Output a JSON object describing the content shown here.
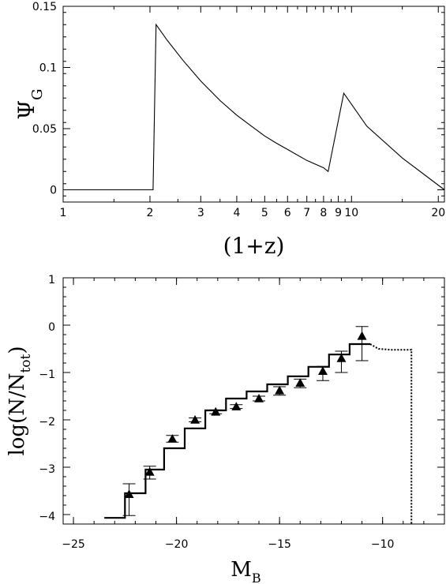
{
  "chart_data": [
    {
      "type": "line",
      "title": "",
      "xlabel": "(1+z)",
      "ylabel_main": "Ψ",
      "ylabel_sub": "G",
      "xscale": "log",
      "xlim": [
        1,
        21
      ],
      "ylim": [
        -0.01,
        0.15
      ],
      "xticks": [
        1,
        2,
        3,
        4,
        5,
        6,
        7,
        8,
        9,
        10,
        20
      ],
      "xtick_labels": [
        "1",
        "2",
        "3",
        "4",
        "5",
        "6",
        "7",
        "8",
        "9",
        "10",
        "20"
      ],
      "yticks": [
        0,
        0.05,
        0.1,
        0.15
      ],
      "ytick_labels": [
        "0",
        "0.05",
        "0.1",
        "0.15"
      ],
      "grid": false,
      "series": [
        {
          "x": [
            1,
            2.05,
            2.1,
            2.3,
            2.6,
            3.0,
            3.5,
            4.0,
            4.5,
            5.0,
            5.5,
            6.0,
            7.0,
            8.0,
            8.3,
            9.4,
            11.3,
            15.0,
            21.0
          ],
          "y": [
            0,
            0,
            0.135,
            0.122,
            0.106,
            0.089,
            0.073,
            0.061,
            0.052,
            0.044,
            0.038,
            0.033,
            0.024,
            0.018,
            0.015,
            0.079,
            0.052,
            0.026,
            0
          ]
        }
      ]
    },
    {
      "type": "line",
      "title": "",
      "xlabel_main": "M",
      "xlabel_sub": "B",
      "ylabel_main": "log(N/N",
      "ylabel_sub": "tot",
      "ylabel_end": ")",
      "xlim": [
        -25.5,
        -7
      ],
      "ylim": [
        -4.2,
        1
      ],
      "xticks": [
        -25,
        -20,
        -15,
        -10
      ],
      "xtick_labels": [
        "−25",
        "−20",
        "−15",
        "−10"
      ],
      "yticks": [
        1,
        0,
        -1,
        -2,
        -3,
        -4
      ],
      "ytick_labels": [
        "1",
        "0",
        "−1",
        "−2",
        "−3",
        "−4"
      ],
      "grid": false,
      "model_step": {
        "edges": [
          -23.5,
          -22.5,
          -21.5,
          -20.6,
          -19.6,
          -18.6,
          -17.6,
          -16.6,
          -15.6,
          -14.6,
          -13.6,
          -12.6,
          -11.6,
          -10.6
        ],
        "values": [
          -4.07,
          -3.55,
          -3.05,
          -2.6,
          -2.18,
          -1.8,
          -1.55,
          -1.4,
          -1.25,
          -1.08,
          -0.88,
          -0.62,
          -0.4
        ]
      },
      "model_dotted": {
        "x": [
          -10.6,
          -10.2,
          -9.6,
          -8.6,
          -8.6
        ],
        "y": [
          -0.4,
          -0.5,
          -0.52,
          -0.52,
          -4.2
        ]
      },
      "observed": {
        "x": [
          -22.3,
          -21.3,
          -20.2,
          -19.1,
          -18.1,
          -17.1,
          -16.0,
          -15.0,
          -14.0,
          -12.9,
          -12.0,
          -11.0
        ],
        "y": [
          -3.57,
          -3.1,
          -2.4,
          -2.0,
          -1.83,
          -1.72,
          -1.55,
          -1.38,
          -1.22,
          -0.97,
          -0.7,
          -0.23
        ],
        "err_low": [
          0.45,
          0.15,
          0.07,
          0.04,
          0.04,
          0.04,
          0.05,
          0.1,
          0.1,
          0.2,
          0.3,
          0.52
        ],
        "err_high": [
          0.22,
          0.12,
          0.07,
          0.04,
          0.04,
          0.04,
          0.05,
          0.08,
          0.08,
          0.1,
          0.15,
          0.2
        ]
      }
    }
  ]
}
